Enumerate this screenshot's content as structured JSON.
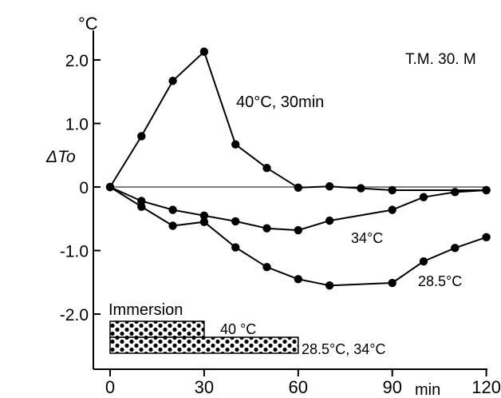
{
  "chart_data": {
    "type": "line",
    "title": "T.M. 30. M",
    "yunit": "°C",
    "ylabel": "ΔTo",
    "xlabel": "min",
    "xlim": [
      0,
      120
    ],
    "ylim": [
      -2.0,
      2.5
    ],
    "x_ticks": [
      "0",
      "30",
      "60",
      "90",
      "120"
    ],
    "x_tick_values": [
      0,
      30,
      60,
      90,
      120
    ],
    "y_ticks": [
      "2.0",
      "1.0",
      "0",
      "-1.0",
      "-2.0"
    ],
    "y_tick_values": [
      2.0,
      1.0,
      0,
      -1.0,
      -2.0
    ],
    "zero_line": true,
    "series": [
      {
        "label": "40°C, 30min",
        "points": [
          [
            0,
            0
          ],
          [
            10,
            0.8
          ],
          [
            20,
            1.67
          ],
          [
            30,
            2.13
          ],
          [
            40,
            0.67
          ],
          [
            50,
            0.3
          ],
          [
            60,
            -0.01
          ],
          [
            70,
            0.01
          ],
          [
            80,
            -0.02
          ],
          [
            90,
            -0.05
          ],
          [
            120,
            -0.05
          ]
        ]
      },
      {
        "label": "34°C",
        "points": [
          [
            0,
            0
          ],
          [
            10,
            -0.22
          ],
          [
            20,
            -0.36
          ],
          [
            30,
            -0.45
          ],
          [
            40,
            -0.54
          ],
          [
            50,
            -0.65
          ],
          [
            60,
            -0.68
          ],
          [
            70,
            -0.53
          ],
          [
            90,
            -0.36
          ],
          [
            100,
            -0.16
          ],
          [
            110,
            -0.08
          ],
          [
            120,
            -0.05
          ]
        ]
      },
      {
        "label": "28.5°C",
        "points": [
          [
            0,
            0
          ],
          [
            10,
            -0.31
          ],
          [
            20,
            -0.61
          ],
          [
            30,
            -0.55
          ],
          [
            40,
            -0.95
          ],
          [
            50,
            -1.26
          ],
          [
            60,
            -1.45
          ],
          [
            70,
            -1.55
          ],
          [
            90,
            -1.51
          ],
          [
            100,
            -1.17
          ],
          [
            110,
            -0.96
          ],
          [
            120,
            -0.79
          ]
        ]
      }
    ],
    "immersion": {
      "title": "Immersion",
      "bars": [
        {
          "label": "40 °C",
          "start": 0,
          "end": 30
        },
        {
          "label": "28.5°C, 34°C",
          "start": 0,
          "end": 60
        }
      ]
    }
  }
}
